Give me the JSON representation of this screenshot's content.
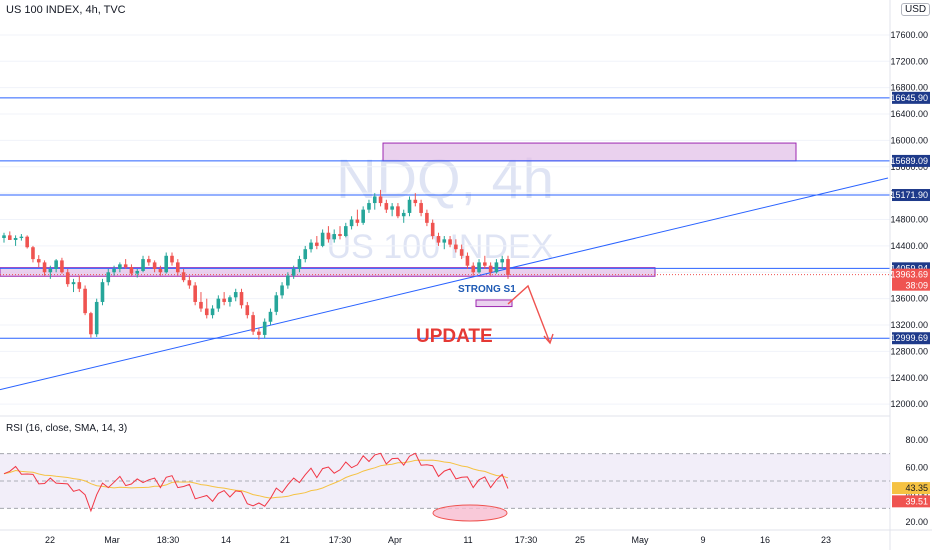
{
  "header": {
    "title": "US 100 INDEX, 4h, TVC",
    "currency": "USD"
  },
  "watermark": {
    "line1": "NDQ, 4h",
    "line2": "US 100 INDEX"
  },
  "annotations": {
    "support_label": "STRONG S1",
    "update_label": "UPDATE"
  },
  "colors": {
    "up": "#26a69a",
    "down": "#ef5350",
    "level_line": "#2962ff",
    "zone_fill": "#e1bee7",
    "zone_stroke": "#9c27b0",
    "rsi_line": "#f23645",
    "rsi_sma": "#f5c242",
    "rsi_band": "#ede7f6",
    "update_text": "#e53935"
  },
  "rsi": {
    "title": "RSI (16, close, SMA, 14, 3)",
    "scale_ticks": [
      "80.00",
      "60.00",
      "40.00",
      "20.00"
    ],
    "sma_badge": "43.35",
    "rsi_badge": "39.51"
  },
  "chart_data": {
    "type": "candlestick",
    "title": "US 100 INDEX, 4h, TVC",
    "ylim": [
      11820,
      18130
    ],
    "y_tick_labels": [
      "17600.00",
      "17200.00",
      "16800.00",
      "16400.00",
      "16000.00",
      "15600.00",
      "15200.00",
      "14800.00",
      "14400.00",
      "14000.00",
      "13600.00",
      "13200.00",
      "12800.00",
      "12400.00",
      "12000.00"
    ],
    "x_tick_labels": [
      "22",
      "Mar",
      "18:30",
      "14",
      "21",
      "17:30",
      "Apr",
      "11",
      "17:30",
      "25",
      "May",
      "9",
      "16",
      "23"
    ],
    "horizontal_levels": [
      {
        "value": 16645.9,
        "label": "16645.90"
      },
      {
        "value": 15689.09,
        "label": "15689.09"
      },
      {
        "value": 15171.9,
        "label": "15171.90"
      },
      {
        "value": 14059.94,
        "label": "14059.94"
      },
      {
        "value": 12999.69,
        "label": "12999.69"
      }
    ],
    "last_price": {
      "value": 13963.69,
      "label": "13963.69",
      "countdown": "38:09"
    },
    "zones": [
      {
        "from": 15690,
        "to": 15960,
        "name": "resistance-zone"
      },
      {
        "from": 13940,
        "to": 14070,
        "name": "support-zone"
      },
      {
        "from": 13480,
        "to": 13580,
        "name": "target-zone"
      }
    ],
    "trendline": {
      "start": 12220,
      "end": 15430
    },
    "candles": [
      [
        14520,
        14600,
        14450,
        14560
      ],
      [
        14560,
        14620,
        14500,
        14490
      ],
      [
        14490,
        14560,
        14400,
        14520
      ],
      [
        14520,
        14580,
        14480,
        14540
      ],
      [
        14540,
        14560,
        14360,
        14380
      ],
      [
        14380,
        14400,
        14150,
        14200
      ],
      [
        14200,
        14260,
        14080,
        14150
      ],
      [
        14150,
        14180,
        13950,
        14000
      ],
      [
        14000,
        14100,
        13900,
        14050
      ],
      [
        14050,
        14200,
        14000,
        14180
      ],
      [
        14180,
        14220,
        13980,
        14000
      ],
      [
        14000,
        14050,
        13780,
        13820
      ],
      [
        13820,
        13900,
        13700,
        13850
      ],
      [
        13850,
        13950,
        13700,
        13750
      ],
      [
        13750,
        13800,
        13350,
        13380
      ],
      [
        13380,
        13400,
        13010,
        13060
      ],
      [
        13060,
        13600,
        13020,
        13550
      ],
      [
        13550,
        13900,
        13500,
        13850
      ],
      [
        13850,
        14050,
        13800,
        14000
      ],
      [
        14000,
        14100,
        13950,
        14050
      ],
      [
        14050,
        14150,
        14000,
        14120
      ],
      [
        14120,
        14200,
        14050,
        14080
      ],
      [
        14080,
        14120,
        13950,
        13980
      ],
      [
        13980,
        14050,
        13920,
        14020
      ],
      [
        14020,
        14250,
        14000,
        14200
      ],
      [
        14200,
        14250,
        14100,
        14150
      ],
      [
        14150,
        14180,
        14000,
        14050
      ],
      [
        14050,
        14100,
        13950,
        14000
      ],
      [
        14000,
        14300,
        13980,
        14250
      ],
      [
        14250,
        14300,
        14100,
        14150
      ],
      [
        14150,
        14200,
        13950,
        14000
      ],
      [
        14000,
        14050,
        13850,
        13880
      ],
      [
        13880,
        13950,
        13750,
        13800
      ],
      [
        13800,
        13850,
        13500,
        13550
      ],
      [
        13550,
        13700,
        13400,
        13450
      ],
      [
        13450,
        13600,
        13300,
        13350
      ],
      [
        13350,
        13500,
        13300,
        13450
      ],
      [
        13450,
        13650,
        13400,
        13600
      ],
      [
        13600,
        13700,
        13500,
        13550
      ],
      [
        13550,
        13650,
        13480,
        13620
      ],
      [
        13620,
        13750,
        13560,
        13700
      ],
      [
        13700,
        13750,
        13450,
        13500
      ],
      [
        13500,
        13550,
        13300,
        13350
      ],
      [
        13350,
        13400,
        13050,
        13100
      ],
      [
        13100,
        13150,
        12980,
        13050
      ],
      [
        13050,
        13300,
        13000,
        13250
      ],
      [
        13250,
        13450,
        13200,
        13400
      ],
      [
        13400,
        13700,
        13350,
        13650
      ],
      [
        13650,
        13850,
        13600,
        13800
      ],
      [
        13800,
        14000,
        13750,
        13950
      ],
      [
        13950,
        14100,
        13900,
        14050
      ],
      [
        14050,
        14250,
        14000,
        14200
      ],
      [
        14200,
        14400,
        14150,
        14350
      ],
      [
        14350,
        14500,
        14300,
        14450
      ],
      [
        14450,
        14550,
        14350,
        14400
      ],
      [
        14400,
        14650,
        14380,
        14600
      ],
      [
        14600,
        14700,
        14450,
        14500
      ],
      [
        14500,
        14650,
        14450,
        14580
      ],
      [
        14580,
        14700,
        14500,
        14550
      ],
      [
        14550,
        14750,
        14530,
        14700
      ],
      [
        14700,
        14850,
        14650,
        14800
      ],
      [
        14800,
        14950,
        14700,
        14750
      ],
      [
        14750,
        15000,
        14720,
        14950
      ],
      [
        14950,
        15100,
        14900,
        15050
      ],
      [
        15050,
        15200,
        14950,
        15150
      ],
      [
        15150,
        15250,
        15000,
        15050
      ],
      [
        15050,
        15100,
        14900,
        14950
      ],
      [
        14950,
        15050,
        14850,
        15000
      ],
      [
        15000,
        15050,
        14820,
        14850
      ],
      [
        14850,
        14950,
        14750,
        14900
      ],
      [
        14900,
        15150,
        14850,
        15100
      ],
      [
        15100,
        15200,
        15000,
        15050
      ],
      [
        15050,
        15100,
        14850,
        14900
      ],
      [
        14900,
        14950,
        14700,
        14750
      ],
      [
        14750,
        14800,
        14500,
        14550
      ],
      [
        14550,
        14600,
        14400,
        14450
      ],
      [
        14450,
        14550,
        14350,
        14500
      ],
      [
        14500,
        14550,
        14380,
        14420
      ],
      [
        14420,
        14500,
        14300,
        14350
      ],
      [
        14350,
        14420,
        14200,
        14250
      ],
      [
        14250,
        14300,
        14050,
        14100
      ],
      [
        14100,
        14150,
        13950,
        14000
      ],
      [
        14000,
        14200,
        13980,
        14150
      ],
      [
        14150,
        14250,
        14050,
        14100
      ],
      [
        14100,
        14150,
        13950,
        14000
      ],
      [
        14000,
        14200,
        13980,
        14150
      ],
      [
        14150,
        14250,
        14050,
        14200
      ],
      [
        14200,
        14250,
        13900,
        13960
      ]
    ]
  }
}
